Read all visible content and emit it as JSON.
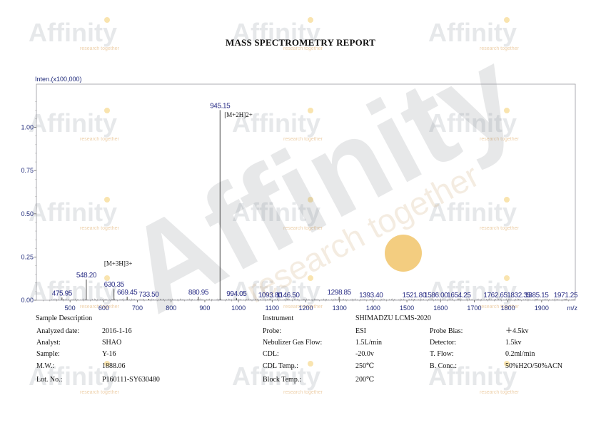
{
  "header": {
    "title": "MASS SPECTROMETRY REPORT"
  },
  "watermark": {
    "text": "Affinity",
    "tagline": "research together",
    "color": "#c9cdd2",
    "accent": "#f5d27a"
  },
  "chart_data": {
    "type": "line",
    "ylabel": "Inten.(x100,000)",
    "xlabel": "m/z",
    "xlim": [
      400,
      2000
    ],
    "ylim": [
      0,
      1.25
    ],
    "x_ticks": [
      500,
      600,
      700,
      800,
      900,
      1000,
      1100,
      1200,
      1300,
      1400,
      1500,
      1600,
      1700,
      1800,
      1900
    ],
    "y_ticks": [
      0.0,
      0.25,
      0.5,
      0.75,
      1.0
    ],
    "y_tick_labels": [
      "0.00",
      "0.25",
      "0.50",
      "0.75",
      "1.00"
    ],
    "peaks": [
      {
        "x": 475.95,
        "y": 0.015,
        "label": "475.95"
      },
      {
        "x": 548.2,
        "y": 0.12,
        "label": "548.20"
      },
      {
        "x": 630.35,
        "y": 0.065,
        "label": "630.35"
      },
      {
        "x": 669.45,
        "y": 0.02,
        "label": "669.45"
      },
      {
        "x": 733.5,
        "y": 0.008,
        "label": "733.50"
      },
      {
        "x": 880.95,
        "y": 0.02,
        "label": "880.95"
      },
      {
        "x": 945.15,
        "y": 1.1,
        "label": "945.15"
      },
      {
        "x": 994.05,
        "y": 0.012,
        "label": "994.05"
      },
      {
        "x": 1093.8,
        "y": 0.005,
        "label": "1093.80"
      },
      {
        "x": 1146.5,
        "y": 0.005,
        "label": "1146.50"
      },
      {
        "x": 1298.85,
        "y": 0.02,
        "label": "1298.85"
      },
      {
        "x": 1393.4,
        "y": 0.004,
        "label": "1393.40"
      },
      {
        "x": 1521.8,
        "y": 0.004,
        "label": "1521.80"
      },
      {
        "x": 1586.0,
        "y": 0.004,
        "label": "1586.00"
      },
      {
        "x": 1654.25,
        "y": 0.004,
        "label": "1654.25"
      },
      {
        "x": 1762.65,
        "y": 0.004,
        "label": "1762.65"
      },
      {
        "x": 1832.35,
        "y": 0.004,
        "label": "1832.35"
      },
      {
        "x": 1885.15,
        "y": 0.004,
        "label": "1885.15"
      },
      {
        "x": 1971.25,
        "y": 0.004,
        "label": "1971.25"
      }
    ],
    "annotations": [
      {
        "text": "[M+2H]2+",
        "x": 945.15,
        "y": 1.06
      },
      {
        "text": "[M+3H]3+",
        "x": 630.35,
        "y": 0.2
      }
    ]
  },
  "sample_info": {
    "left": [
      {
        "label": "Sample Description",
        "value": ""
      },
      {
        "label": "Analyzed date:",
        "value": "2016-1-16"
      },
      {
        "label": "Analyst:",
        "value": "SHAO"
      },
      {
        "label": "Sample:",
        "value": "Y-16"
      },
      {
        "label": "M.W.:",
        "value": "1888.06"
      },
      {
        "label": "Lot. No.:",
        "value": "P160111-SY630480"
      }
    ],
    "right": [
      {
        "label": "Instrument",
        "value": "SHIMADZU LCMS-2020",
        "label2": "",
        "value2": ""
      },
      {
        "label": "Probe:",
        "value": "ESI",
        "label2": "Probe Bias:",
        "value2": "＋4.5kv"
      },
      {
        "label": "Nebulizer Gas Flow:",
        "value": "1.5L/min",
        "label2": "Detector:",
        "value2": "1.5kv"
      },
      {
        "label": "CDL:",
        "value": "-20.0v",
        "label2": "T. Flow:",
        "value2": "0.2ml/min"
      },
      {
        "label": "CDL Temp.:",
        "value": "250℃",
        "label2": "B. Conc.:",
        "value2": "50%H2O/50%ACN"
      },
      {
        "label": "Block Temp.:",
        "value": "200℃",
        "label2": "",
        "value2": ""
      }
    ]
  }
}
